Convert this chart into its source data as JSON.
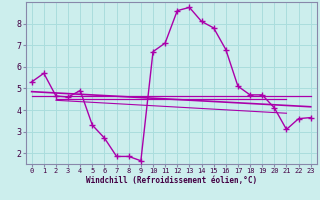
{
  "xlabel": "Windchill (Refroidissement éolien,°C)",
  "bg_color": "#cceeed",
  "grid_color": "#aadddd",
  "line_color": "#aa00aa",
  "spine_color": "#8888aa",
  "xlim": [
    -0.5,
    23.5
  ],
  "ylim": [
    1.5,
    9.0
  ],
  "yticks": [
    2,
    3,
    4,
    5,
    6,
    7,
    8
  ],
  "xticks": [
    0,
    1,
    2,
    3,
    4,
    5,
    6,
    7,
    8,
    9,
    10,
    11,
    12,
    13,
    14,
    15,
    16,
    17,
    18,
    19,
    20,
    21,
    22,
    23
  ],
  "curve1_x": [
    0,
    1,
    2,
    3,
    4,
    5,
    6,
    7,
    8,
    9,
    10,
    11,
    12,
    13,
    14,
    15,
    16,
    17,
    18,
    19,
    20,
    21,
    22,
    23
  ],
  "curve1_y": [
    5.3,
    5.7,
    4.65,
    4.6,
    4.9,
    3.3,
    2.7,
    1.85,
    1.85,
    1.65,
    6.7,
    7.1,
    8.6,
    8.75,
    8.1,
    7.8,
    6.8,
    5.1,
    4.7,
    4.7,
    4.1,
    3.1,
    3.6,
    3.65
  ],
  "line1_x": [
    0,
    23
  ],
  "line1_y": [
    4.65,
    4.65
  ],
  "line2_x": [
    0,
    23
  ],
  "line2_y": [
    4.85,
    4.15
  ],
  "line3_x": [
    2,
    21
  ],
  "line3_y": [
    4.5,
    4.5
  ],
  "line4_x": [
    2,
    21
  ],
  "line4_y": [
    4.45,
    3.85
  ]
}
